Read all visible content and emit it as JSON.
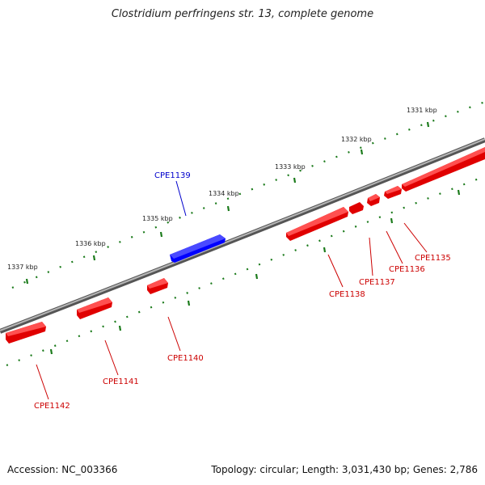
{
  "title": "Clostridium perfringens str. 13, complete genome",
  "footer": {
    "accession": "Accession: NC_003366",
    "summary": "Topology: circular; Length: 3,031,430 bp; Genes: 2,786"
  },
  "colors": {
    "backbone": "#7a7a7a",
    "reverse_gene": "#ff0000",
    "forward_gene": "#0000ff",
    "ticks": "#1a7a1a",
    "reverse_label": "#cc0000",
    "forward_label": "#0000cc"
  },
  "kbp_ticks": [
    "1331 kbp",
    "1332 kbp",
    "1333 kbp",
    "1334 kbp",
    "1335 kbp",
    "1336 kbp",
    "1337 kbp"
  ],
  "genes": [
    {
      "name": "CPE1135",
      "strand": "reverse"
    },
    {
      "name": "CPE1136",
      "strand": "reverse"
    },
    {
      "name": "CPE1137",
      "strand": "reverse"
    },
    {
      "name": "CPE1138",
      "strand": "reverse"
    },
    {
      "name": "CPE1139",
      "strand": "forward"
    },
    {
      "name": "CPE1140",
      "strand": "reverse"
    },
    {
      "name": "CPE1141",
      "strand": "reverse"
    },
    {
      "name": "CPE1142",
      "strand": "reverse"
    }
  ]
}
